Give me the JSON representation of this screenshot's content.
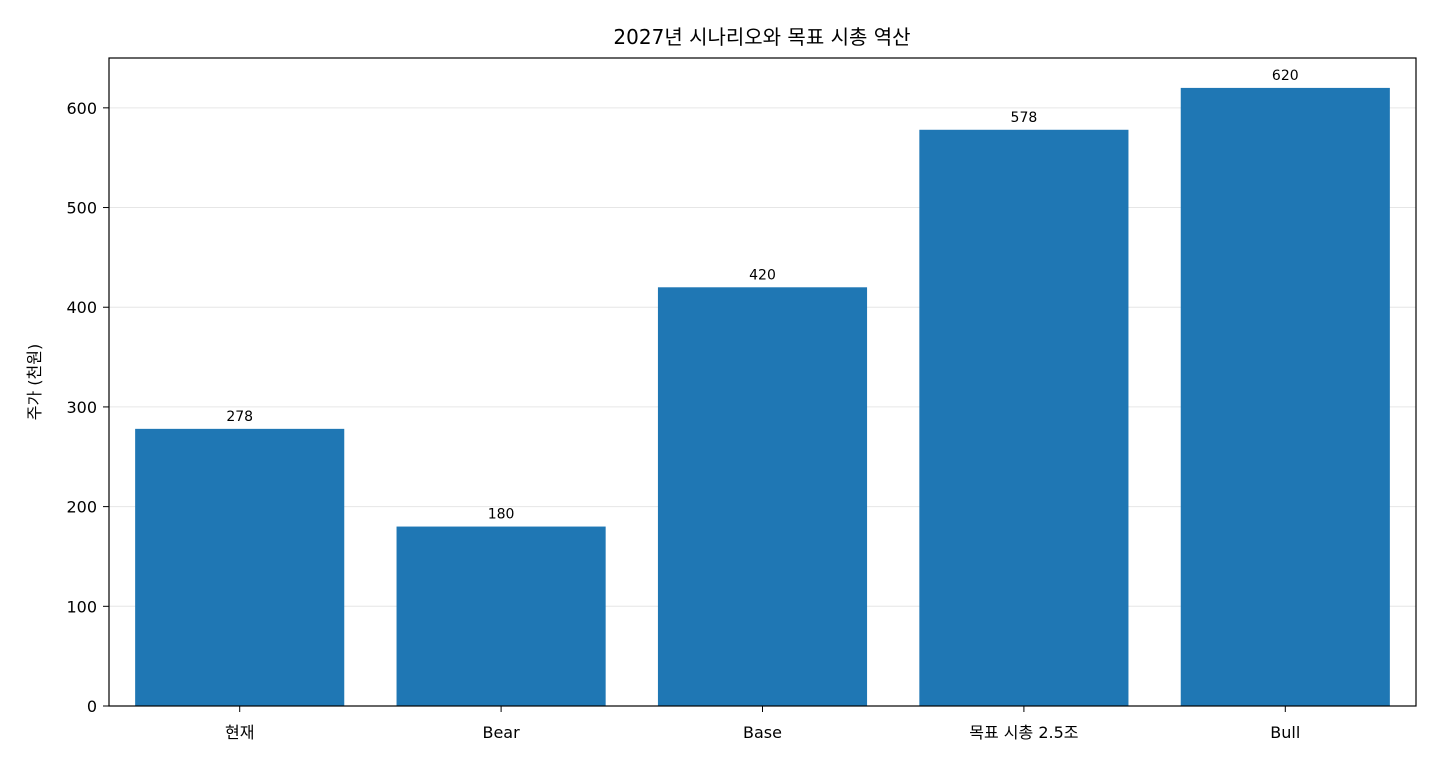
{
  "chart_data": {
    "type": "bar",
    "title": "2027년 시나리오와 목표 시총 역산",
    "xlabel": "",
    "ylabel": "주가 (천원)",
    "categories": [
      "현재",
      "Bear",
      "Base",
      "목표 시총 2.5조",
      "Bull"
    ],
    "values": [
      278,
      180,
      420,
      578,
      620
    ],
    "data_labels": [
      "278",
      "180",
      "420",
      "578",
      "620"
    ],
    "ylim": [
      0,
      650
    ],
    "yticks": [
      0,
      100,
      200,
      300,
      400,
      500,
      600
    ],
    "ytick_labels": [
      "0",
      "100",
      "200",
      "300",
      "400",
      "500",
      "600"
    ],
    "grid": true,
    "grid_axis": "y",
    "bar_color": "#1f77b4"
  }
}
